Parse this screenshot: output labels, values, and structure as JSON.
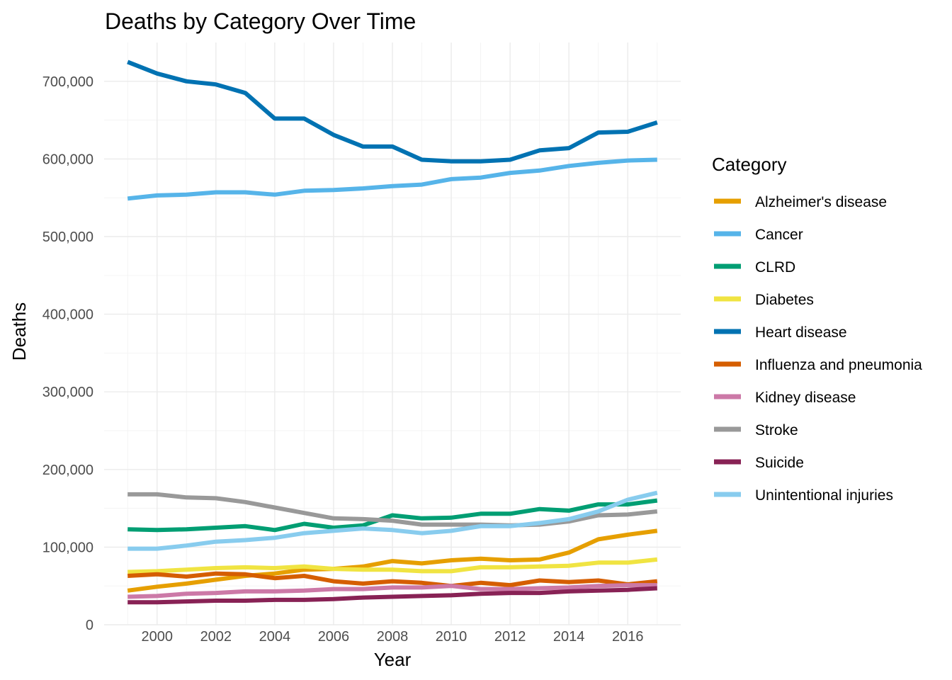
{
  "chart_data": {
    "type": "line",
    "title": "Deaths by Category Over Time",
    "xlabel": "Year",
    "ylabel": "Deaths",
    "xlim": [
      1998.2,
      2017.8
    ],
    "ylim": [
      0,
      750000
    ],
    "x_ticks": [
      2000,
      2002,
      2004,
      2006,
      2008,
      2010,
      2012,
      2014,
      2016
    ],
    "y_ticks": [
      0,
      100000,
      200000,
      300000,
      400000,
      500000,
      600000,
      700000
    ],
    "y_tick_labels": [
      "0",
      "100,000",
      "200,000",
      "300,000",
      "400,000",
      "500,000",
      "600,000",
      "700,000"
    ],
    "grid": true,
    "legend": {
      "title": "Category",
      "position": "right"
    },
    "x": [
      1999,
      2000,
      2001,
      2002,
      2003,
      2004,
      2005,
      2006,
      2007,
      2008,
      2009,
      2010,
      2011,
      2012,
      2013,
      2014,
      2015,
      2016,
      2017
    ],
    "series": [
      {
        "name": "Alzheimer's disease",
        "color": "#E69F00",
        "values": [
          44000,
          49000,
          53000,
          58000,
          63000,
          66000,
          71000,
          72000,
          75000,
          82000,
          79000,
          83000,
          85000,
          83000,
          84000,
          93000,
          110000,
          116000,
          121000
        ]
      },
      {
        "name": "Cancer",
        "color": "#56B4E9",
        "values": [
          549000,
          553000,
          554000,
          557000,
          557000,
          554000,
          559000,
          560000,
          562000,
          565000,
          567000,
          574000,
          576000,
          582000,
          585000,
          591000,
          595000,
          598000,
          599000
        ]
      },
      {
        "name": "CLRD",
        "color": "#009E73",
        "values": [
          123000,
          122000,
          123000,
          125000,
          127000,
          122000,
          130000,
          125000,
          128000,
          141000,
          137000,
          138000,
          143000,
          143000,
          149000,
          147000,
          155000,
          155000,
          160000
        ]
      },
      {
        "name": "Diabetes",
        "color": "#F0E442",
        "values": [
          68000,
          69000,
          71000,
          73000,
          74000,
          73000,
          75000,
          72000,
          71000,
          71000,
          69000,
          69000,
          74000,
          74000,
          75000,
          76000,
          80000,
          80000,
          84000
        ]
      },
      {
        "name": "Heart disease",
        "color": "#0072B2",
        "values": [
          725000,
          710000,
          700000,
          696000,
          685000,
          652000,
          652000,
          631000,
          616000,
          616000,
          599000,
          597000,
          597000,
          599000,
          611000,
          614000,
          634000,
          635000,
          647000
        ]
      },
      {
        "name": "Influenza and pneumonia",
        "color": "#D55E00",
        "values": [
          63000,
          65000,
          62000,
          66000,
          65000,
          60000,
          63000,
          56000,
          53000,
          56000,
          54000,
          50000,
          54000,
          51000,
          57000,
          55000,
          57000,
          52000,
          56000
        ]
      },
      {
        "name": "Kidney disease",
        "color": "#CC79A7",
        "values": [
          36000,
          37000,
          40000,
          41000,
          43000,
          43000,
          44000,
          46000,
          46000,
          48000,
          48000,
          50000,
          46000,
          46000,
          47000,
          48000,
          50000,
          51000,
          51000
        ]
      },
      {
        "name": "Stroke",
        "color": "#999999",
        "values": [
          168000,
          168000,
          164000,
          163000,
          158000,
          151000,
          144000,
          137000,
          136000,
          134000,
          129000,
          129000,
          129000,
          128000,
          129000,
          133000,
          141000,
          142000,
          146000
        ]
      },
      {
        "name": "Suicide",
        "color": "#882255",
        "values": [
          29000,
          29000,
          30000,
          31000,
          31000,
          32000,
          32000,
          33000,
          35000,
          36000,
          37000,
          38000,
          40000,
          41000,
          41000,
          43000,
          44000,
          45000,
          47000
        ]
      },
      {
        "name": "Unintentional injuries",
        "color": "#88CCEE",
        "values": [
          98000,
          98000,
          102000,
          107000,
          109000,
          112000,
          118000,
          121000,
          124000,
          122000,
          118000,
          121000,
          127000,
          127000,
          131000,
          136000,
          146000,
          161000,
          170000
        ]
      }
    ]
  }
}
